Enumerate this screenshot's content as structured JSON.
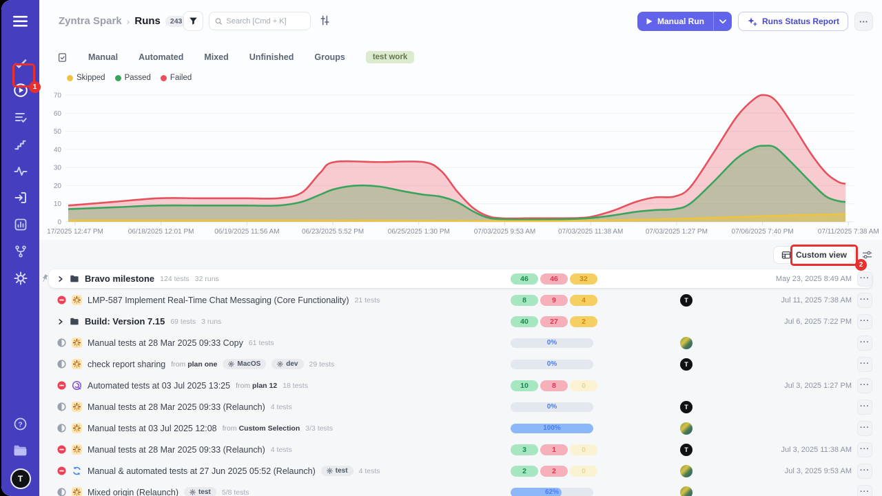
{
  "header": {
    "breadcrumb_project": "Zyntra Spark",
    "breadcrumb_sep": "›",
    "breadcrumb_page": "Runs",
    "count_badge": "243",
    "search_placeholder": "Search [Cmd + K]",
    "manual_run_label": "Manual Run",
    "runs_status_report_label": "Runs Status Report",
    "more_label": "···"
  },
  "tabs": {
    "items": [
      "Manual",
      "Automated",
      "Mixed",
      "Unfinished",
      "Groups"
    ],
    "badge": "test work"
  },
  "custom_view": {
    "label": "Custom view"
  },
  "annotations": {
    "badge1": "1",
    "badge2": "2"
  },
  "sidebar": {
    "avatar_initial": "T"
  },
  "chart_data": {
    "type": "area",
    "ylim": [
      0,
      70
    ],
    "yticks": [
      0,
      10,
      20,
      30,
      40,
      50,
      60,
      70
    ],
    "grid": "horizontal",
    "legend_position": "top-left",
    "legend": [
      {
        "label": "Skipped",
        "color": "#eec33f"
      },
      {
        "label": "Passed",
        "color": "#36a45c"
      },
      {
        "label": "Failed",
        "color": "#ee4d5d"
      }
    ],
    "x_labels": [
      "17/2025 12:47 PM",
      "06/18/2025 12:01 PM",
      "06/19/2025 11:56 AM",
      "06/23/2025 5:52 PM",
      "06/25/2025 1:30 PM",
      "07/03/2025 9:53 AM",
      "07/03/2025 11:38 AM",
      "07/03/2025 1:27 PM",
      "07/06/2025 7:40 PM",
      "07/11/2025 7:38 AM"
    ],
    "series": [
      {
        "name": "Failed",
        "color": "#e5515c",
        "fill": "rgba(235,90,98,0.30)",
        "points": [
          [
            0,
            9
          ],
          [
            0.058,
            11
          ],
          [
            0.116,
            13
          ],
          [
            0.17,
            13
          ],
          [
            0.229,
            13
          ],
          [
            0.27,
            13
          ],
          [
            0.3,
            16
          ],
          [
            0.324,
            27
          ],
          [
            0.342,
            33
          ],
          [
            0.4,
            33
          ],
          [
            0.457,
            33
          ],
          [
            0.48,
            28
          ],
          [
            0.5,
            17
          ],
          [
            0.52,
            8
          ],
          [
            0.538,
            3.5
          ],
          [
            0.557,
            2
          ],
          [
            0.6,
            2
          ],
          [
            0.64,
            2
          ],
          [
            0.669,
            2.5
          ],
          [
            0.7,
            6
          ],
          [
            0.73,
            11
          ],
          [
            0.755,
            13.5
          ],
          [
            0.78,
            14
          ],
          [
            0.8,
            19
          ],
          [
            0.83,
            38
          ],
          [
            0.86,
            58
          ],
          [
            0.883,
            68
          ],
          [
            0.896,
            70
          ],
          [
            0.91,
            67
          ],
          [
            0.93,
            55
          ],
          [
            0.955,
            38
          ],
          [
            0.975,
            27
          ],
          [
            0.991,
            22
          ],
          [
            1,
            21
          ]
        ]
      },
      {
        "name": "Passed",
        "color": "#3aa45f",
        "fill": "rgba(87,167,86,0.35)",
        "points": [
          [
            0,
            7
          ],
          [
            0.058,
            8
          ],
          [
            0.116,
            9
          ],
          [
            0.17,
            9
          ],
          [
            0.229,
            9
          ],
          [
            0.27,
            9
          ],
          [
            0.3,
            11
          ],
          [
            0.324,
            15
          ],
          [
            0.342,
            18
          ],
          [
            0.37,
            20
          ],
          [
            0.4,
            19.5
          ],
          [
            0.43,
            17
          ],
          [
            0.457,
            15
          ],
          [
            0.478,
            14
          ],
          [
            0.5,
            11
          ],
          [
            0.52,
            6
          ],
          [
            0.538,
            2.5
          ],
          [
            0.557,
            1.5
          ],
          [
            0.6,
            1.3
          ],
          [
            0.64,
            1.5
          ],
          [
            0.669,
            2
          ],
          [
            0.7,
            3.5
          ],
          [
            0.73,
            5.5
          ],
          [
            0.755,
            6.5
          ],
          [
            0.78,
            7
          ],
          [
            0.8,
            10
          ],
          [
            0.83,
            22
          ],
          [
            0.86,
            35
          ],
          [
            0.883,
            41
          ],
          [
            0.896,
            42
          ],
          [
            0.91,
            41
          ],
          [
            0.93,
            33
          ],
          [
            0.955,
            22
          ],
          [
            0.975,
            14
          ],
          [
            0.991,
            11.5
          ],
          [
            1,
            11
          ]
        ]
      },
      {
        "name": "Skipped",
        "color": "#eec33f",
        "fill": "rgba(240,200,60,0.45)",
        "points": [
          [
            0,
            0.7
          ],
          [
            0.1,
            0.7
          ],
          [
            0.2,
            0.7
          ],
          [
            0.3,
            0.7
          ],
          [
            0.4,
            0.6
          ],
          [
            0.5,
            0.5
          ],
          [
            0.557,
            0.4
          ],
          [
            0.6,
            0.4
          ],
          [
            0.65,
            0.5
          ],
          [
            0.7,
            0.9
          ],
          [
            0.75,
            1.3
          ],
          [
            0.8,
            1.8
          ],
          [
            0.85,
            2.5
          ],
          [
            0.9,
            3.2
          ],
          [
            0.95,
            3.8
          ],
          [
            1,
            4.3
          ]
        ]
      }
    ]
  },
  "table": {
    "avatar_initial": "T",
    "more_label": "···",
    "rows": [
      {
        "type": "group",
        "pinned": true,
        "expandable": true,
        "kind": "folder",
        "status": null,
        "title": "Bravo milestone",
        "tests": "124 tests",
        "runs": "32 runs",
        "from": null,
        "tags": [],
        "stats": {
          "passed": "46",
          "failed": "46",
          "skipped": "32",
          "skipped_faded": false
        },
        "progress": null,
        "avatar": null,
        "date": "May 23, 2025 8:49 AM"
      },
      {
        "type": "run",
        "pinned": false,
        "expandable": false,
        "kind": "manual",
        "status": "stopped",
        "title": "LMP-587 Implement Real-Time Chat Messaging (Core Functionality)",
        "tests": "21 tests",
        "runs": null,
        "from": null,
        "tags": [],
        "stats": {
          "passed": "8",
          "failed": "9",
          "skipped": "4",
          "skipped_faded": false
        },
        "progress": null,
        "avatar": "T",
        "date": "Jul 11, 2025 7:38 AM"
      },
      {
        "type": "group",
        "pinned": false,
        "expandable": true,
        "kind": "folder",
        "status": null,
        "title": "Build: Version 7.15",
        "tests": "69 tests",
        "runs": "3 runs",
        "from": null,
        "tags": [],
        "stats": {
          "passed": "40",
          "failed": "27",
          "skipped": "2",
          "skipped_faded": false
        },
        "progress": null,
        "avatar": null,
        "date": "Jul 6, 2025 7:22 PM"
      },
      {
        "type": "run",
        "pinned": false,
        "expandable": false,
        "kind": "manual",
        "status": "in_progress",
        "title": "Manual tests at 28 Mar 2025 09:33 Copy",
        "tests": "61 tests",
        "runs": null,
        "from": null,
        "tags": [],
        "stats": null,
        "progress": {
          "label": "0%",
          "value": 0
        },
        "avatar": "photo",
        "date": null
      },
      {
        "type": "run",
        "pinned": false,
        "expandable": false,
        "kind": "manual",
        "status": "in_progress",
        "title": "check report sharing",
        "tests": "29 tests",
        "runs": null,
        "from": "plan one",
        "tags": [
          "MacOS",
          "dev"
        ],
        "stats": null,
        "progress": {
          "label": "0%",
          "value": 0
        },
        "avatar": "T",
        "date": null
      },
      {
        "type": "run",
        "pinned": false,
        "expandable": false,
        "kind": "automated",
        "status": "stopped",
        "title": "Automated tests at 03 Jul 2025 13:25",
        "tests": "18 tests",
        "runs": null,
        "from": "plan 12",
        "tags": [],
        "stats": {
          "passed": "10",
          "failed": "8",
          "skipped": "0",
          "skipped_faded": true
        },
        "progress": null,
        "avatar": null,
        "date": "Jul 3, 2025 1:27 PM"
      },
      {
        "type": "run",
        "pinned": false,
        "expandable": false,
        "kind": "manual",
        "status": "in_progress",
        "title": "Manual tests at 28 Mar 2025 09:33 (Relaunch)",
        "tests": "4 tests",
        "runs": null,
        "from": null,
        "tags": [],
        "stats": null,
        "progress": {
          "label": "0%",
          "value": 0
        },
        "avatar": "T",
        "date": null
      },
      {
        "type": "run",
        "pinned": false,
        "expandable": false,
        "kind": "manual",
        "status": "in_progress",
        "title": "Manual tests at 03 Jul 2025 12:08",
        "tests": "3/3 tests",
        "runs": null,
        "from": "Custom Selection",
        "tags": [],
        "stats": null,
        "progress": {
          "label": "100%",
          "value": 100
        },
        "avatar": "photo",
        "date": null
      },
      {
        "type": "run",
        "pinned": false,
        "expandable": false,
        "kind": "manual",
        "status": "stopped",
        "title": "Manual tests at 28 Mar 2025 09:33 (Relaunch)",
        "tests": "4 tests",
        "runs": null,
        "from": null,
        "tags": [],
        "stats": {
          "passed": "3",
          "failed": "1",
          "skipped": "0",
          "skipped_faded": true
        },
        "progress": null,
        "avatar": "T",
        "date": "Jul 3, 2025 11:38 AM"
      },
      {
        "type": "run",
        "pinned": false,
        "expandable": false,
        "kind": "mixed",
        "status": "stopped",
        "title": "Manual & automated tests at 27 Jun 2025 05:52 (Relaunch)",
        "tests": "4 tests",
        "runs": null,
        "from": null,
        "tags": [
          "test"
        ],
        "stats": {
          "passed": "2",
          "failed": "2",
          "skipped": "0",
          "skipped_faded": true
        },
        "progress": null,
        "avatar": "photo",
        "date": "Jul 3, 2025 9:53 AM"
      },
      {
        "type": "run",
        "pinned": false,
        "expandable": false,
        "kind": "manual",
        "status": "in_progress",
        "title": "Mixed origin (Relaunch)",
        "tests": "5/8 tests",
        "runs": null,
        "from": null,
        "tags": [
          "test"
        ],
        "stats": null,
        "progress": {
          "label": "62%",
          "value": 62
        },
        "avatar": "photo",
        "date": null
      }
    ]
  }
}
